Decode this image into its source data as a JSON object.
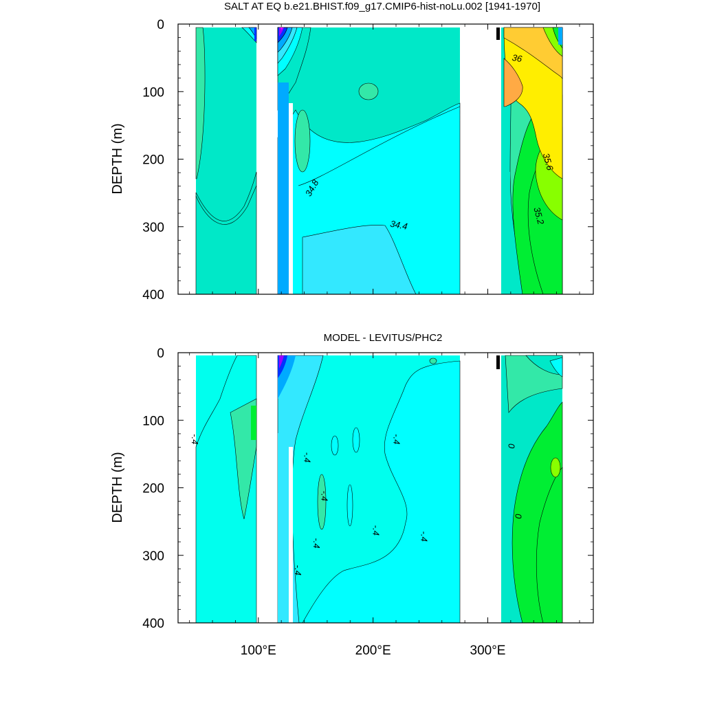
{
  "chart_data": [
    {
      "type": "heatmap",
      "title": "SALT AT EQ b.e21.BHIST.f09_g17.CMIP6-hist-noLu.002 [1941-1970]",
      "ylabel": "DEPTH (m)",
      "xlabel": "",
      "x_ticks": [
        100,
        200,
        300
      ],
      "x_tick_labels": [
        "100°E",
        "200°E",
        "300°E"
      ],
      "y_ticks": [
        0,
        100,
        200,
        300,
        400
      ],
      "y_tick_labels": [
        "0",
        "100",
        "200",
        "300",
        "400"
      ],
      "xlim": [
        30,
        392
      ],
      "ylim": [
        400,
        0
      ],
      "contour_labels": [
        {
          "text": "36",
          "lon": 325,
          "depth": 55
        },
        {
          "text": "35.6",
          "lon": 350,
          "depth": 205
        },
        {
          "text": "35.2",
          "lon": 342,
          "depth": 285
        },
        {
          "text": "34.8",
          "lon": 149,
          "depth": 245
        },
        {
          "text": "34.4",
          "lon": 222,
          "depth": 302
        }
      ],
      "colors": {
        "background_water": "#00e8c8",
        "low_cyan": "#00ffff",
        "cyan2": "#33e8ff",
        "blue": "#00aaff",
        "deep_blue": "#0033ff",
        "purple": "#9900ff",
        "magenta": "#ff00ff",
        "teal_green": "#33e8a8",
        "green": "#00ee33",
        "lime": "#88ff00",
        "yellow": "#ffee00",
        "gold": "#ffcc33",
        "orange": "#ffaa44"
      }
    },
    {
      "type": "heatmap",
      "title": "MODEL - LEVITUS/PHC2",
      "ylabel": "DEPTH (m)",
      "xlabel": "",
      "x_ticks": [
        100,
        200,
        300
      ],
      "x_tick_labels": [
        "100°E",
        "200°E",
        "300°E"
      ],
      "y_ticks": [
        0,
        100,
        200,
        300,
        400
      ],
      "y_tick_labels": [
        "0",
        "100",
        "200",
        "300",
        "400"
      ],
      "xlim": [
        30,
        392
      ],
      "ylim": [
        400,
        0
      ],
      "contour_labels": [
        {
          "text": "-.4",
          "lon": 42,
          "depth": 128
        },
        {
          "text": "-.4",
          "lon": 140,
          "depth": 155
        },
        {
          "text": "-.4",
          "lon": 155,
          "depth": 212
        },
        {
          "text": "-.4",
          "lon": 148,
          "depth": 282
        },
        {
          "text": "-.4",
          "lon": 132,
          "depth": 322
        },
        {
          "text": "-.4",
          "lon": 200,
          "depth": 263
        },
        {
          "text": "-.4",
          "lon": 242,
          "depth": 272
        },
        {
          "text": "-.4",
          "lon": 218,
          "depth": 128
        },
        {
          "text": "0",
          "lon": 318,
          "depth": 138
        },
        {
          "text": "0",
          "lon": 324,
          "depth": 242
        }
      ],
      "colors": {
        "background_water": "#00ffee",
        "cyan": "#00ffff",
        "light_cyan": "#33e8ff",
        "teal": "#00e8c8",
        "teal_green": "#33e8a8",
        "green": "#00ee33",
        "purple": "#9900ff",
        "deep_blue": "#0033ff"
      }
    }
  ]
}
